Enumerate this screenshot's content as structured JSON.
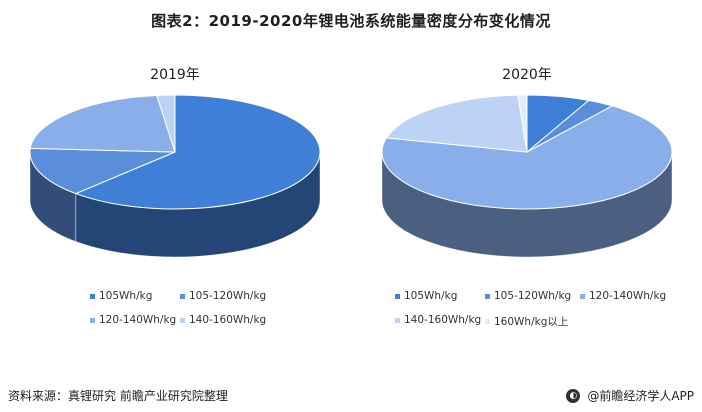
{
  "title": "图表2：2019-2020年锂电池系统能量密度分布变化情况",
  "chart_data": [
    {
      "type": "pie",
      "title": "2019年",
      "categories": [
        "105Wh/kg",
        "105-120Wh/kg",
        "120-140Wh/kg",
        "140-160Wh/kg"
      ],
      "values": [
        62,
        14,
        22,
        2
      ],
      "colors": [
        "#3F7FD8",
        "#5A8EDB",
        "#89AEEA",
        "#BCD3F5"
      ],
      "legend_placement": "bottom"
    },
    {
      "type": "pie",
      "title": "2020年",
      "categories": [
        "105Wh/kg",
        "105-120Wh/kg",
        "120-140Wh/kg",
        "140-160Wh/kg",
        "160Wh/kg以上"
      ],
      "values": [
        7,
        3,
        69,
        20,
        1
      ],
      "colors": [
        "#3F7FD8",
        "#5A8EDB",
        "#89AEEA",
        "#BCD3F5",
        "#E3ECF9"
      ],
      "legend_placement": "bottom"
    }
  ],
  "footer": {
    "source": "资料来源：真锂研究 前瞻产业研究院整理",
    "brand": "@前瞻经济学人APP",
    "brand_icon": "qianzhan-logo-icon"
  }
}
